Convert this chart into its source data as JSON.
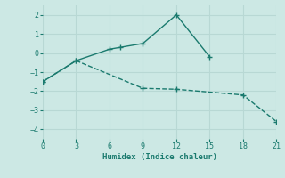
{
  "line1_x": [
    0,
    3,
    6,
    7,
    9,
    12,
    15
  ],
  "line1_y": [
    -1.5,
    -0.4,
    0.2,
    0.3,
    0.5,
    2.0,
    -0.2
  ],
  "line2_x": [
    0,
    3,
    9,
    12,
    18,
    21
  ],
  "line2_y": [
    -1.5,
    -0.4,
    -1.85,
    -1.9,
    -2.2,
    -3.6
  ],
  "color": "#1a7a6e",
  "bg_color": "#cce8e4",
  "grid_color": "#b8d8d4",
  "xlabel": "Humidex (Indice chaleur)",
  "xlim": [
    0,
    21
  ],
  "ylim": [
    -4.5,
    2.5
  ],
  "xticks": [
    0,
    3,
    6,
    9,
    12,
    15,
    18,
    21
  ],
  "yticks": [
    -4,
    -3,
    -2,
    -1,
    0,
    1,
    2
  ],
  "font_color": "#1a7a6e",
  "marker": "+"
}
